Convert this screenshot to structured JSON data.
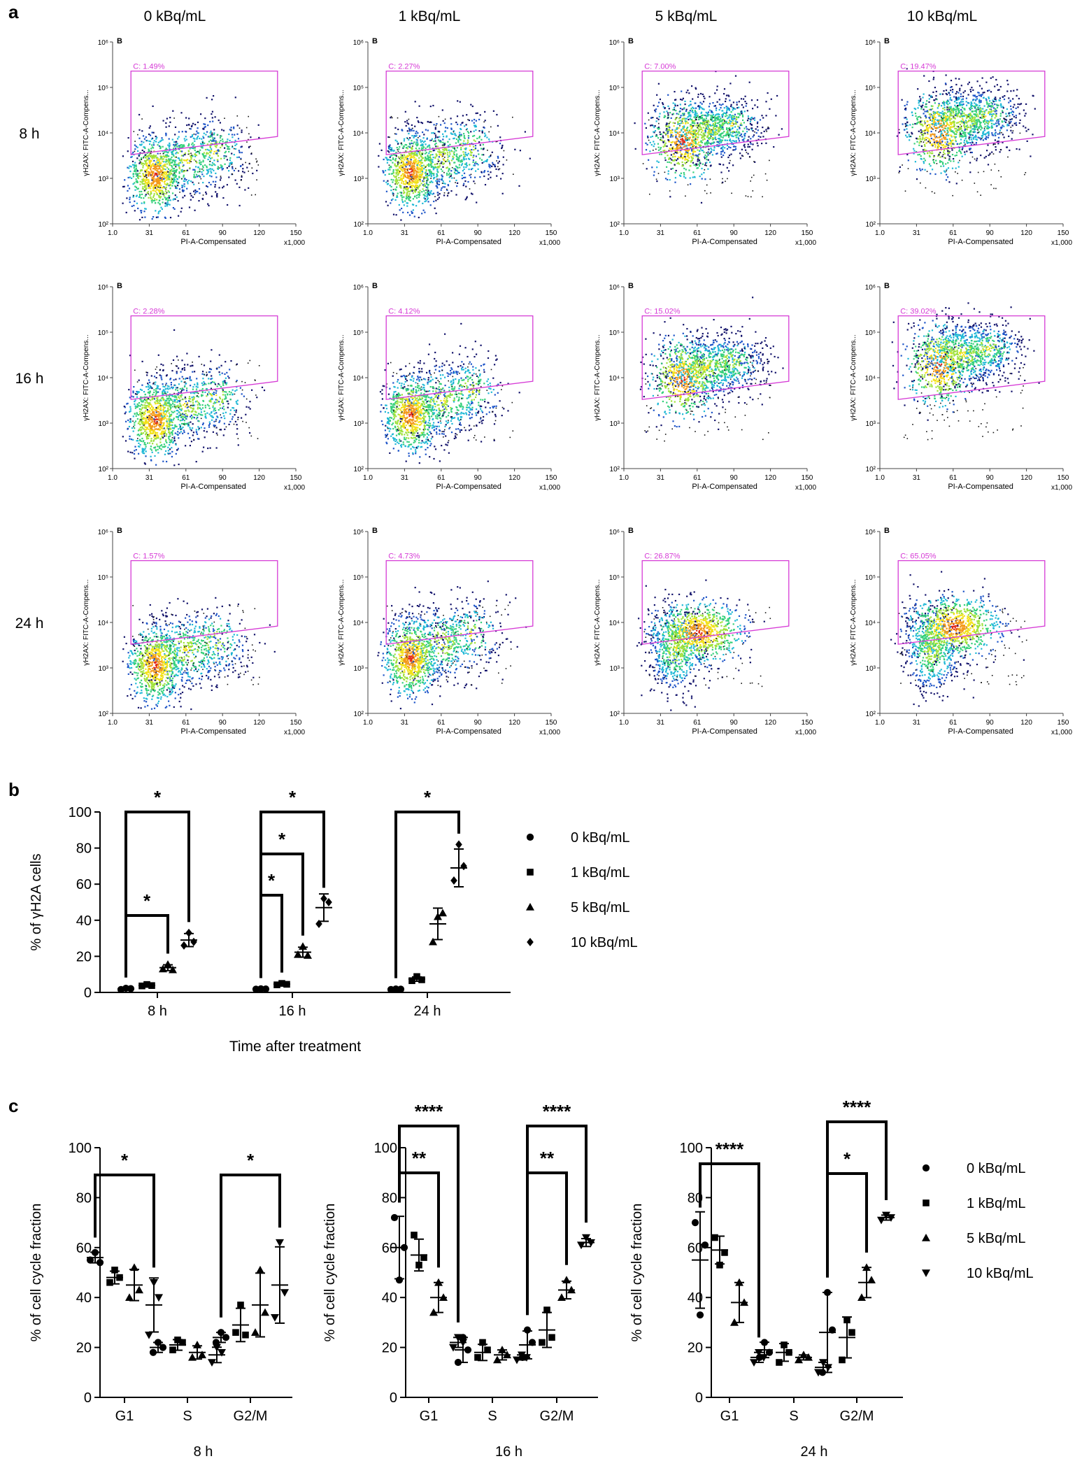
{
  "panel_labels": {
    "a": "a",
    "b": "b",
    "c": "c"
  },
  "panel_a": {
    "column_headers": [
      "0 kBq/mL",
      "1 kBq/mL",
      "5 kBq/mL",
      "10 kBq/mL"
    ],
    "row_labels": [
      "8 h",
      "16 h",
      "24 h"
    ],
    "plot_tag": "B",
    "x_axis_label": "PI-A-Compensated",
    "y_axis_label": "γH2AX: FITC-A-Compens...",
    "x_ticks": [
      "1.0",
      "31",
      "61",
      "90",
      "120",
      "150"
    ],
    "x_multiplier": "x1,000",
    "y_ticks": [
      "10²",
      "10³",
      "10⁴",
      "10⁵",
      "10⁶"
    ],
    "gate_color": "#d63bd6",
    "gates": [
      [
        "C: 1.49%",
        "C: 2.27%",
        "C: 7.00%",
        "C: 19.47%"
      ],
      [
        "C: 2.28%",
        "C: 4.12%",
        "C: 15.02%",
        "C: 39.02%"
      ],
      [
        "C: 1.57%",
        "C: 4.73%",
        "C: 26.87%",
        "C: 65.05%"
      ]
    ]
  },
  "chart_data": [
    {
      "id": "b",
      "type": "scatter",
      "ylabel": "% of γH2A cells",
      "xlabel": "Time after treatment",
      "ylim": [
        0,
        100
      ],
      "y_ticks": [
        "0",
        "20",
        "40",
        "60",
        "80",
        "100"
      ],
      "categories": [
        "8 h",
        "16 h",
        "24 h"
      ],
      "series": [
        {
          "name": "0 kBq/mL",
          "marker": "circle",
          "values": [
            [
              1.6,
              2.3,
              2.1
            ],
            [
              1.8,
              2.0,
              1.9
            ],
            [
              1.6,
              1.9,
              1.8
            ]
          ],
          "mean": [
            2.0,
            1.9,
            1.8
          ]
        },
        {
          "name": "1 kBq/mL",
          "marker": "square",
          "values": [
            [
              3.6,
              4.4,
              3.8
            ],
            [
              4.2,
              5.0,
              4.5
            ],
            [
              6.5,
              8.8,
              7.0
            ]
          ],
          "mean": [
            3.9,
            4.6,
            7.4
          ]
        },
        {
          "name": "5 kBq/mL",
          "marker": "triangle",
          "values": [
            [
              13.0,
              15.5,
              12.5
            ],
            [
              21.0,
              25.5,
              20.5
            ],
            [
              28.0,
              42.0,
              44.0
            ]
          ],
          "mean": [
            13.7,
            22.3,
            38.0
          ]
        },
        {
          "name": "10 kBq/mL",
          "marker": "diamond",
          "values": [
            [
              26.0,
              33.0,
              28.0
            ],
            [
              38.0,
              52.0,
              50.0
            ],
            [
              62.0,
              82.0,
              70.0
            ]
          ],
          "mean": [
            29.0,
            47.0,
            69.0
          ]
        }
      ],
      "significance": [
        {
          "category": "8 h",
          "from": "0 kBq/mL",
          "to": "10 kBq/mL",
          "label": "*"
        },
        {
          "category": "8 h",
          "from": "0 kBq/mL",
          "to": "5 kBq/mL",
          "label": "*"
        },
        {
          "category": "16 h",
          "from": "0 kBq/mL",
          "to": "10 kBq/mL",
          "label": "*"
        },
        {
          "category": "16 h",
          "from": "0 kBq/mL",
          "to": "5 kBq/mL",
          "label": "*"
        },
        {
          "category": "16 h",
          "from": "0 kBq/mL",
          "to": "1 kBq/mL",
          "label": "*"
        },
        {
          "category": "24 h",
          "from": "0 kBq/mL",
          "to": "10 kBq/mL",
          "label": "*"
        }
      ]
    },
    {
      "id": "c-8h",
      "type": "scatter",
      "title": "8 h",
      "ylabel": "% of cell cycle fraction",
      "ylim": [
        0,
        100
      ],
      "y_ticks": [
        "0",
        "20",
        "40",
        "60",
        "80",
        "100"
      ],
      "categories": [
        "G1",
        "S",
        "G2/M"
      ],
      "series": [
        {
          "name": "0 kBq/mL",
          "marker": "circle",
          "values": [
            [
              55,
              58,
              54
            ],
            [
              18,
              22,
              20
            ],
            [
              22,
              26,
              24
            ]
          ],
          "mean": [
            56,
            20,
            24
          ]
        },
        {
          "name": "1 kBq/mL",
          "marker": "square",
          "values": [
            [
              46,
              51,
              48
            ],
            [
              19,
              23,
              22
            ],
            [
              26,
              37,
              25
            ]
          ],
          "mean": [
            48,
            21,
            29
          ]
        },
        {
          "name": "5 kBq/mL",
          "marker": "triangle",
          "values": [
            [
              40,
              52,
              43
            ],
            [
              16,
              21,
              17
            ],
            [
              26,
              51,
              34
            ]
          ],
          "mean": [
            45,
            18,
            37
          ]
        },
        {
          "name": "10 kBq/mL",
          "marker": "tri-down",
          "values": [
            [
              25,
              46,
              40
            ],
            [
              14,
              20,
              18
            ],
            [
              32,
              62,
              42
            ]
          ],
          "mean": [
            37,
            17,
            45
          ]
        }
      ],
      "significance": [
        {
          "category": "G1",
          "from": "0 kBq/mL",
          "to": "10 kBq/mL",
          "label": "*"
        },
        {
          "category": "G2/M",
          "from": "0 kBq/mL",
          "to": "10 kBq/mL",
          "label": "*"
        }
      ]
    },
    {
      "id": "c-16h",
      "type": "scatter",
      "title": "16 h",
      "ylabel": "% of cell cycle fraction",
      "ylim": [
        0,
        100
      ],
      "y_ticks": [
        "0",
        "20",
        "40",
        "60",
        "80",
        "100"
      ],
      "categories": [
        "G1",
        "S",
        "G2/M"
      ],
      "series": [
        {
          "name": "0 kBq/mL",
          "marker": "circle",
          "values": [
            [
              72,
              47,
              60
            ],
            [
              14,
              24,
              19
            ],
            [
              16,
              27,
              22
            ]
          ],
          "mean": [
            60,
            19,
            21
          ]
        },
        {
          "name": "1 kBq/mL",
          "marker": "square",
          "values": [
            [
              65,
              53,
              56
            ],
            [
              16,
              22,
              19
            ],
            [
              22,
              35,
              24
            ]
          ],
          "mean": [
            57,
            18,
            27
          ]
        },
        {
          "name": "5 kBq/mL",
          "marker": "triangle",
          "values": [
            [
              34,
              46,
              40
            ],
            [
              15,
              19,
              17
            ],
            [
              40,
              47,
              43
            ]
          ],
          "mean": [
            40,
            17,
            43
          ]
        },
        {
          "name": "10 kBq/mL",
          "marker": "tri-down",
          "values": [
            [
              20,
              24,
              22
            ],
            [
              15,
              17,
              16
            ],
            [
              61,
              64,
              62
            ]
          ],
          "mean": [
            22,
            16,
            62
          ]
        }
      ],
      "significance": [
        {
          "category": "G1",
          "from": "0 kBq/mL",
          "to": "10 kBq/mL",
          "label": "****"
        },
        {
          "category": "G1",
          "from": "0 kBq/mL",
          "to": "5 kBq/mL",
          "label": "**"
        },
        {
          "category": "G2/M",
          "from": "0 kBq/mL",
          "to": "10 kBq/mL",
          "label": "****"
        },
        {
          "category": "G2/M",
          "from": "0 kBq/mL",
          "to": "5 kBq/mL",
          "label": "**"
        }
      ]
    },
    {
      "id": "c-24h",
      "type": "scatter",
      "title": "24 h",
      "ylabel": "% of cell cycle fraction",
      "ylim": [
        0,
        100
      ],
      "y_ticks": [
        "0",
        "20",
        "40",
        "60",
        "80",
        "100"
      ],
      "categories": [
        "G1",
        "S",
        "G2/M"
      ],
      "series": [
        {
          "name": "0 kBq/mL",
          "marker": "circle",
          "values": [
            [
              70,
              33,
              61
            ],
            [
              16,
              22,
              18
            ],
            [
              10,
              42,
              27
            ]
          ],
          "mean": [
            55,
            19,
            26
          ]
        },
        {
          "name": "1 kBq/mL",
          "marker": "square",
          "values": [
            [
              64,
              53,
              58
            ],
            [
              14,
              21,
              18
            ],
            [
              15,
              31,
              26
            ]
          ],
          "mean": [
            59,
            18,
            24
          ]
        },
        {
          "name": "5 kBq/mL",
          "marker": "triangle",
          "values": [
            [
              30,
              46,
              38
            ],
            [
              15,
              17,
              16
            ],
            [
              40,
              52,
              47
            ]
          ],
          "mean": [
            38,
            16,
            46
          ]
        },
        {
          "name": "10 kBq/mL",
          "marker": "tri-down",
          "values": [
            [
              14,
              18,
              16
            ],
            [
              10,
              14,
              12
            ],
            [
              71,
              73,
              72
            ]
          ],
          "mean": [
            16,
            12,
            72
          ]
        }
      ],
      "significance": [
        {
          "category": "G1",
          "from": "0 kBq/mL",
          "to": "10 kBq/mL",
          "label": "****"
        },
        {
          "category": "G2/M",
          "from": "0 kBq/mL",
          "to": "10 kBq/mL",
          "label": "****"
        },
        {
          "category": "G2/M",
          "from": "0 kBq/mL",
          "to": "5 kBq/mL",
          "label": "*"
        }
      ]
    }
  ]
}
